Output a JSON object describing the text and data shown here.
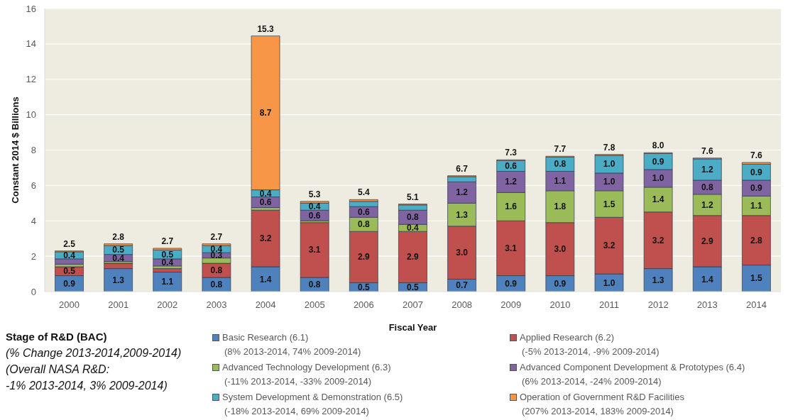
{
  "chart_data": {
    "type": "bar",
    "stacked": true,
    "xlabel": "Fiscal Year",
    "ylabel": "Constant 2014 $ Billions",
    "categories": [
      "2000",
      "2001",
      "2002",
      "2003",
      "2004",
      "2005",
      "2006",
      "2007",
      "2008",
      "2009",
      "2010",
      "2011",
      "2012",
      "2013",
      "2014"
    ],
    "ylim": [
      0,
      16
    ],
    "yticks": [
      0,
      2,
      4,
      6,
      8,
      10,
      12,
      14,
      16
    ],
    "grid": "y",
    "legend": "bottom",
    "legend_title": "Stage of R&D (BAC)",
    "annotations": [
      "(% Change 2013-2014,2009-2014)",
      "(Overall NASA R&D:\n-1% 2013-2014, 3% 2009-2014)",
      {
        "text": "15.3",
        "x": "2004",
        "y": 14.45
      }
    ],
    "totals": [
      "2.5",
      "2.8",
      "2.7",
      "2.7",
      null,
      "5.3",
      "5.4",
      "5.1",
      "6.7",
      "7.3",
      "7.7",
      "7.8",
      "8.0",
      "7.6",
      "7.6"
    ],
    "series": [
      {
        "name": "Basic Research (6.1)\n(8% 2013-2014, 74% 2009-2014)",
        "color": "#4f81bd",
        "values": [
          0.9,
          1.3,
          1.1,
          0.8,
          1.4,
          0.8,
          0.5,
          0.5,
          0.7,
          0.9,
          0.9,
          1.0,
          1.3,
          1.4,
          1.5
        ],
        "value_labels": [
          "0.9",
          "1.3",
          "1.1",
          "0.8",
          "1.4",
          "0.8",
          "0.5",
          "0.5",
          "0.7",
          "0.9",
          "0.9",
          "1.0",
          "1.3",
          "1.4",
          "1.5"
        ]
      },
      {
        "name": "Applied Research (6.2)\n(-5% 2013-2014, -9% 2009-2014)",
        "color": "#c0504d",
        "values": [
          0.5,
          0.3,
          0.2,
          0.8,
          3.2,
          3.1,
          2.9,
          2.9,
          3.0,
          3.1,
          3.0,
          3.2,
          3.2,
          2.9,
          2.8
        ],
        "value_labels": [
          "0.5",
          null,
          null,
          "0.8",
          "3.2",
          "3.1",
          "2.9",
          "2.9",
          "3.0",
          "3.1",
          "3.0",
          "3.2",
          "3.2",
          "2.9",
          "2.8"
        ]
      },
      {
        "name": "Advanced Technology Development (6.3)\n(-11% 2013-2014, -33% 2009-2014)",
        "color": "#9bbb59",
        "values": [
          0.15,
          0.1,
          0.15,
          0.3,
          0.15,
          0.1,
          0.8,
          0.4,
          1.3,
          1.6,
          1.8,
          1.5,
          1.4,
          1.2,
          1.1
        ],
        "value_labels": [
          null,
          null,
          null,
          null,
          null,
          null,
          "0.8",
          "0.4",
          "1.3",
          "1.6",
          "1.8",
          "1.5",
          "1.4",
          "1.2",
          "1.1"
        ]
      },
      {
        "name": "Advanced Component Development & Prototypes (6.4)\n(6% 2013-2014, -24% 2009-2014)",
        "color": "#8064a2",
        "values": [
          0.3,
          0.4,
          0.4,
          0.3,
          0.6,
          0.6,
          0.6,
          0.8,
          1.2,
          1.2,
          1.1,
          1.0,
          1.0,
          0.8,
          0.9
        ],
        "value_labels": [
          null,
          "0.4",
          "0.4",
          "0.3",
          "0.6",
          "0.6",
          "0.6",
          "0.8",
          "1.2",
          "1.2",
          "1.1",
          "1.0",
          "1.0",
          "0.8",
          "0.9"
        ]
      },
      {
        "name": "System Development & Demonstration (6.5)\n(-18% 2013-2014, 69% 2009-2014)",
        "color": "#4bacc6",
        "values": [
          0.4,
          0.5,
          0.5,
          0.4,
          0.4,
          0.4,
          0.3,
          0.3,
          0.3,
          0.6,
          0.8,
          1.0,
          0.9,
          1.2,
          0.9
        ],
        "value_labels": [
          "0.4",
          "0.5",
          "0.5",
          "0.4",
          "0.4",
          "0.4",
          null,
          null,
          null,
          "0.6",
          "0.8",
          "1.0",
          "0.9",
          "1.2",
          "0.9"
        ]
      },
      {
        "name": "Operation of Government R&D Facilities\n(207% 2013-2014, 183% 2009-2014)",
        "color": "#f79646",
        "values": [
          0.05,
          0.1,
          0.1,
          0.1,
          8.7,
          0.1,
          0.1,
          0.05,
          0.05,
          0.05,
          0.05,
          0.05,
          0.05,
          0.05,
          0.1
        ],
        "value_labels": [
          null,
          null,
          null,
          null,
          "8.7",
          null,
          null,
          null,
          null,
          null,
          null,
          null,
          null,
          null,
          null
        ]
      }
    ]
  }
}
